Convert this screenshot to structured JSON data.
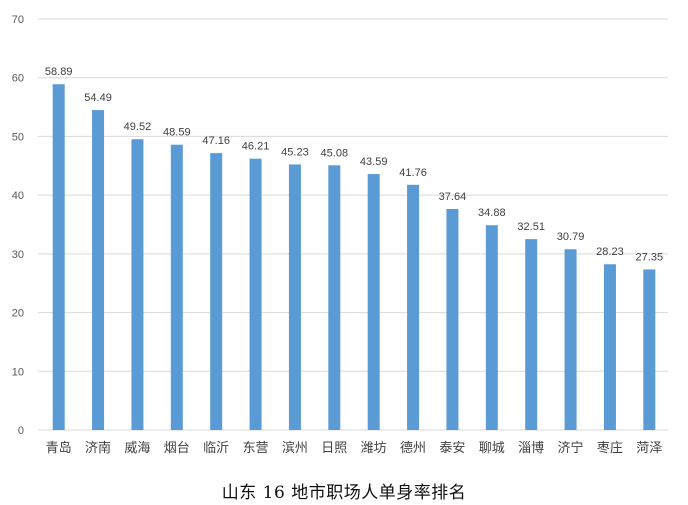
{
  "caption": "山东 16 地市职场人单身率排名",
  "chart_data": {
    "type": "bar",
    "categories": [
      "青岛",
      "济南",
      "威海",
      "烟台",
      "临沂",
      "东营",
      "滨州",
      "日照",
      "潍坊",
      "德州",
      "泰安",
      "聊城",
      "淄博",
      "济宁",
      "枣庄",
      "菏泽"
    ],
    "values": [
      58.89,
      54.49,
      49.52,
      48.59,
      47.16,
      46.21,
      45.23,
      45.08,
      43.59,
      41.76,
      37.64,
      34.88,
      32.51,
      30.79,
      28.23,
      27.35
    ],
    "data_labels": [
      "58.89",
      "54.49",
      "49.52",
      "48.59",
      "47.16",
      "46.21",
      "45.23",
      "45.08",
      "43.59",
      "41.76",
      "37.64",
      "34.88",
      "32.51",
      "30.79",
      "28.23",
      "27.35"
    ],
    "yticks": [
      0,
      10,
      20,
      30,
      40,
      50,
      60,
      70
    ],
    "ylim": [
      0,
      70
    ],
    "title": "",
    "xlabel": "",
    "ylabel": "",
    "grid": true,
    "legend": "none",
    "bar_color": "#5B9BD5",
    "grid_color": "#D9D9D9"
  }
}
